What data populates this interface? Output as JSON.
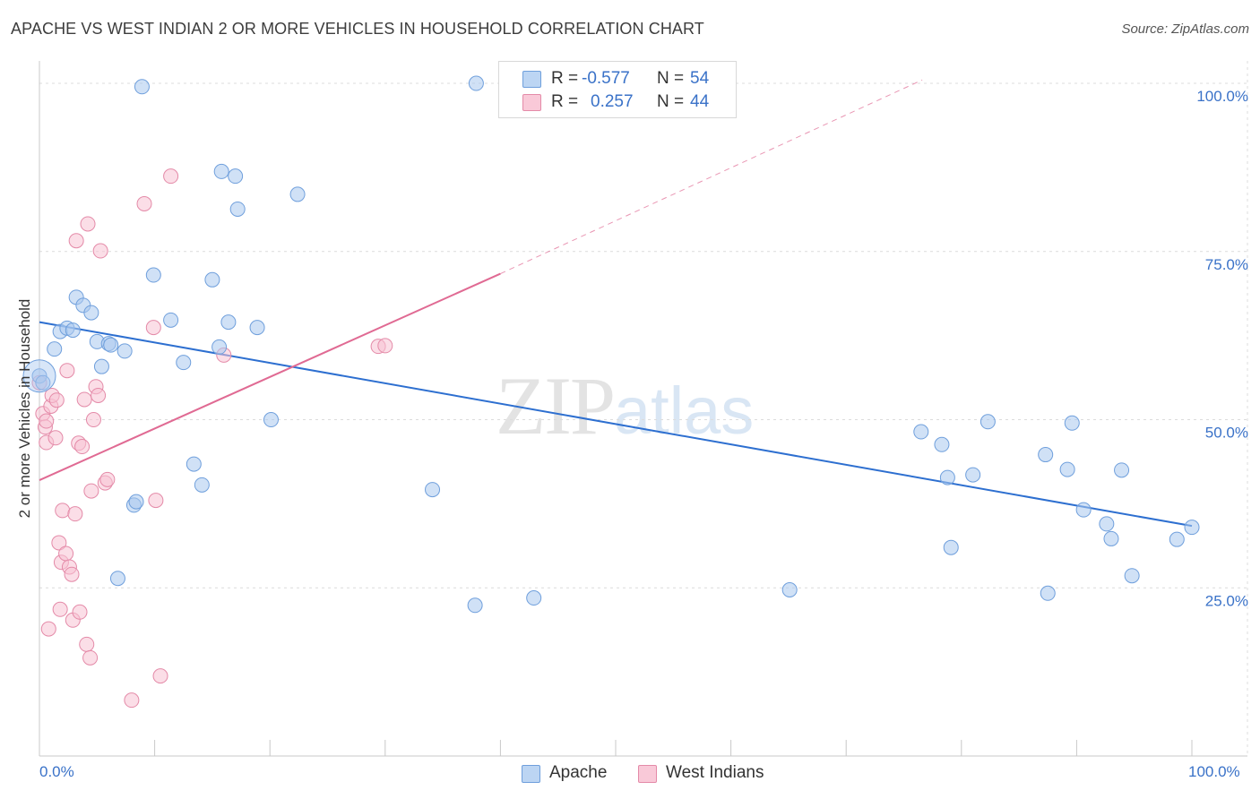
{
  "title": "APACHE VS WEST INDIAN 2 OR MORE VEHICLES IN HOUSEHOLD CORRELATION CHART",
  "source": "Source: ZipAtlas.com",
  "watermark": {
    "zip": "ZIP",
    "atlas": "atlas"
  },
  "legend_box": {
    "rows": [
      {
        "r_label": "R =",
        "r_value": "-0.577",
        "n_label": "N =",
        "n_value": "54",
        "color": "#a9c8ef"
      },
      {
        "r_label": "R =",
        "r_value": "0.257",
        "n_label": "N =",
        "n_value": "44",
        "color": "#f4b5c9"
      }
    ]
  },
  "bottom_legend": [
    {
      "label": "Apache",
      "color": "#a9c8ef"
    },
    {
      "label": "West Indians",
      "color": "#f4b5c9"
    }
  ],
  "colors": {
    "apache_fill": "#a9c8ef",
    "apache_stroke": "#6f9fdc",
    "apache_line": "#2d6fd0",
    "wi_fill": "#f7c2d3",
    "wi_stroke": "#e48aa8",
    "wi_line": "#e06a93",
    "tick_text": "#3a72c8",
    "grid": "#dcdcdc"
  },
  "chart_data": {
    "type": "scatter",
    "title": "APACHE VS WEST INDIAN 2 OR MORE VEHICLES IN HOUSEHOLD CORRELATION CHART",
    "xlabel": "",
    "ylabel": "2 or more Vehicles in Household",
    "xlim": [
      0,
      100
    ],
    "ylim": [
      0,
      102
    ],
    "x_tick_labels": [
      "0.0%",
      "100.0%"
    ],
    "y_ticks": [
      25,
      50,
      75,
      100
    ],
    "y_tick_labels": [
      "25.0%",
      "50.0%",
      "75.0%",
      "100.0%"
    ],
    "series": [
      {
        "name": "Apache",
        "r": -0.577,
        "n": 54,
        "trend": {
          "x0": 0,
          "y0": 64.5,
          "x1": 100,
          "y1": 34.2
        },
        "points": [
          [
            0.0,
            56.5
          ],
          [
            1.8,
            63.1
          ],
          [
            1.3,
            60.5
          ],
          [
            2.4,
            63.6
          ],
          [
            3.2,
            68.2
          ],
          [
            3.8,
            67.0
          ],
          [
            4.5,
            65.9
          ],
          [
            2.9,
            63.3
          ],
          [
            5.0,
            61.6
          ],
          [
            5.4,
            57.9
          ],
          [
            6.0,
            61.3
          ],
          [
            6.2,
            61.1
          ],
          [
            7.4,
            60.2
          ],
          [
            8.2,
            37.3
          ],
          [
            8.4,
            37.8
          ],
          [
            6.8,
            26.4
          ],
          [
            8.9,
            99.5
          ],
          [
            9.9,
            71.5
          ],
          [
            11.4,
            64.8
          ],
          [
            12.5,
            58.5
          ],
          [
            13.4,
            43.4
          ],
          [
            14.1,
            40.3
          ],
          [
            15.0,
            70.8
          ],
          [
            15.6,
            60.8
          ],
          [
            15.8,
            86.9
          ],
          [
            16.4,
            64.5
          ],
          [
            17.0,
            86.2
          ],
          [
            17.2,
            81.3
          ],
          [
            18.9,
            63.7
          ],
          [
            20.1,
            50.0
          ],
          [
            22.4,
            83.5
          ],
          [
            34.1,
            39.6
          ],
          [
            37.8,
            22.4
          ],
          [
            37.9,
            100.0
          ],
          [
            42.9,
            23.5
          ],
          [
            65.1,
            24.7
          ],
          [
            76.5,
            48.2
          ],
          [
            78.3,
            46.3
          ],
          [
            78.8,
            41.4
          ],
          [
            79.1,
            31.0
          ],
          [
            81.0,
            41.8
          ],
          [
            82.3,
            49.7
          ],
          [
            87.3,
            44.8
          ],
          [
            87.5,
            24.2
          ],
          [
            89.2,
            42.6
          ],
          [
            89.6,
            49.5
          ],
          [
            90.6,
            36.6
          ],
          [
            92.6,
            34.5
          ],
          [
            93.0,
            32.3
          ],
          [
            93.9,
            42.5
          ],
          [
            94.8,
            26.8
          ],
          [
            98.7,
            32.2
          ],
          [
            100.0,
            34.0
          ],
          [
            0.3,
            55.5
          ]
        ]
      },
      {
        "name": "West Indians",
        "r": 0.257,
        "n": 44,
        "trend": {
          "x0": 0,
          "y0": 41.0,
          "x1": 40.0,
          "y1": 71.7
        },
        "trend_dashed": {
          "x0": 40.0,
          "y0": 71.7,
          "x1": 76.6,
          "y1": 100.5
        },
        "points": [
          [
            0.0,
            55.5
          ],
          [
            0.3,
            50.9
          ],
          [
            0.5,
            48.9
          ],
          [
            0.6,
            46.6
          ],
          [
            0.6,
            49.8
          ],
          [
            0.8,
            18.9
          ],
          [
            1.0,
            52.0
          ],
          [
            1.1,
            53.6
          ],
          [
            1.4,
            47.3
          ],
          [
            1.5,
            52.9
          ],
          [
            1.7,
            31.7
          ],
          [
            1.8,
            21.8
          ],
          [
            1.9,
            28.8
          ],
          [
            2.0,
            36.5
          ],
          [
            2.3,
            30.1
          ],
          [
            2.4,
            57.3
          ],
          [
            2.6,
            28.1
          ],
          [
            2.8,
            27.0
          ],
          [
            2.9,
            20.2
          ],
          [
            3.1,
            36.0
          ],
          [
            3.2,
            76.6
          ],
          [
            3.4,
            46.5
          ],
          [
            3.5,
            21.4
          ],
          [
            3.7,
            46.0
          ],
          [
            3.9,
            53.0
          ],
          [
            4.1,
            16.6
          ],
          [
            4.2,
            79.1
          ],
          [
            4.4,
            14.6
          ],
          [
            4.5,
            39.4
          ],
          [
            4.7,
            50.0
          ],
          [
            4.9,
            54.9
          ],
          [
            5.1,
            53.6
          ],
          [
            5.3,
            75.1
          ],
          [
            5.7,
            40.6
          ],
          [
            5.9,
            41.1
          ],
          [
            8.0,
            8.3
          ],
          [
            9.1,
            82.1
          ],
          [
            9.9,
            63.7
          ],
          [
            10.1,
            38.0
          ],
          [
            10.5,
            11.9
          ],
          [
            11.4,
            86.2
          ],
          [
            16.0,
            59.6
          ],
          [
            29.4,
            60.9
          ],
          [
            30.0,
            61.0
          ]
        ]
      }
    ]
  }
}
